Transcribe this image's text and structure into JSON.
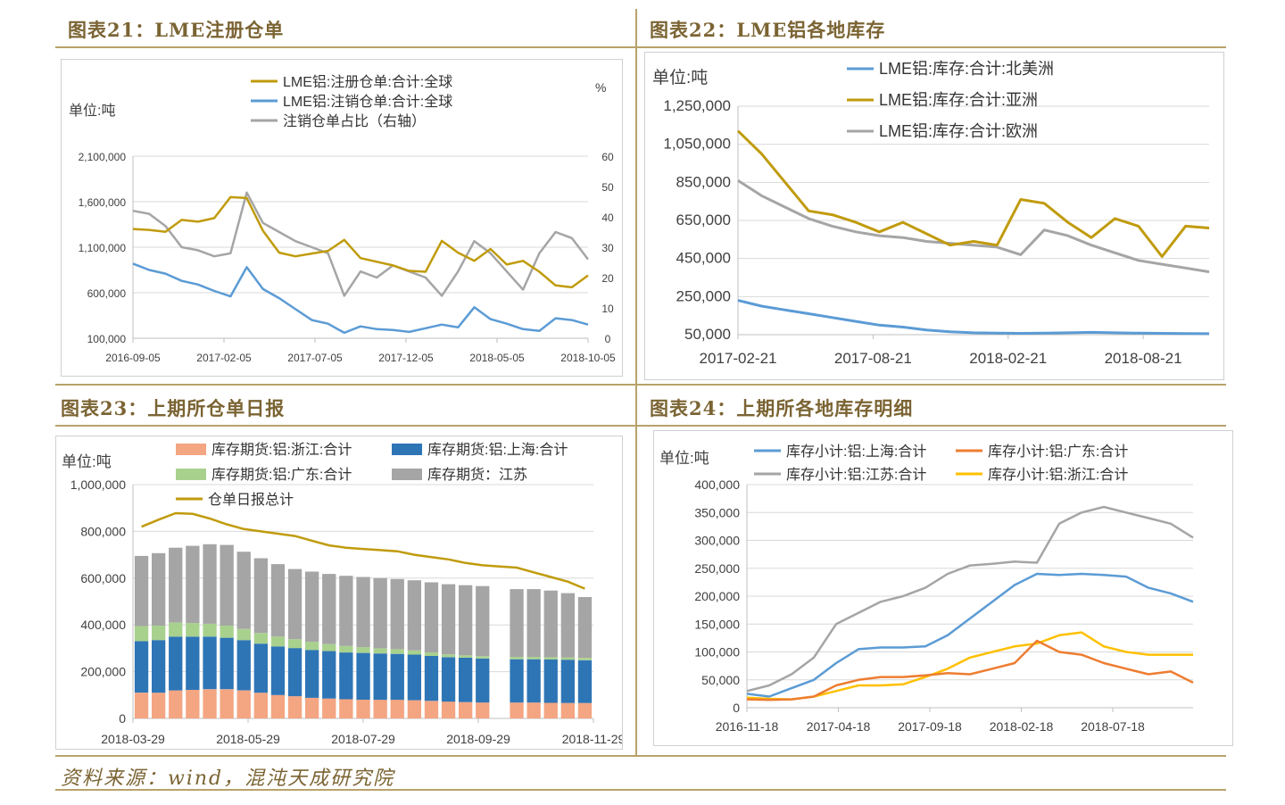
{
  "titles": {
    "p1": "图表21：LME注册仓单",
    "p2": "图表22：LME铝各地库存",
    "p3": "图表23：上期所仓单日报",
    "p4": "图表24：上期所各地库存明细"
  },
  "footer": "资料来源：wind，混沌天成研究院",
  "colors": {
    "gold": "#c09b0c",
    "blue": "#5b9bd5",
    "gray": "#a5a5a5",
    "orange": "#f4a582",
    "darkblue": "#2e75b6",
    "green": "#a9d18e",
    "redorange": "#ed7d31",
    "yellow": "#ffc000"
  },
  "chart_data": [
    {
      "id": "p1",
      "type": "line",
      "ylabel": "单位:吨",
      "y2label": "%",
      "ylim": [
        100000,
        2100000
      ],
      "yticks": [
        "100,000",
        "600,000",
        "1,100,000",
        "1,600,000",
        "2,100,000"
      ],
      "y2lim": [
        0,
        60
      ],
      "y2ticks": [
        "0",
        "10",
        "20",
        "30",
        "40",
        "50",
        "60"
      ],
      "xticks": [
        "2016-09-05",
        "2017-02-05",
        "2017-07-05",
        "2017-12-05",
        "2018-05-05",
        "2018-10-05"
      ],
      "legend": [
        "LME铝:注册仓单:合计:全球",
        "LME铝:注销仓单:合计:全球",
        "注销仓单占比（右轴）"
      ],
      "series": [
        {
          "name": "LME铝:注册仓单:合计:全球",
          "axis": "left",
          "color": "#c09b0c",
          "values": [
            1300000,
            1290000,
            1270000,
            1400000,
            1380000,
            1420000,
            1650000,
            1640000,
            1280000,
            1040000,
            1000000,
            1030000,
            1060000,
            1180000,
            980000,
            940000,
            900000,
            840000,
            830000,
            1170000,
            1040000,
            950000,
            1080000,
            910000,
            950000,
            830000,
            680000,
            660000,
            790000
          ]
        },
        {
          "name": "LME铝:注销仓单:合计:全球",
          "axis": "left",
          "color": "#5b9bd5",
          "values": [
            920000,
            850000,
            810000,
            730000,
            690000,
            620000,
            560000,
            880000,
            640000,
            540000,
            420000,
            300000,
            260000,
            160000,
            230000,
            200000,
            190000,
            170000,
            210000,
            250000,
            220000,
            440000,
            310000,
            260000,
            200000,
            180000,
            320000,
            300000,
            250000
          ]
        },
        {
          "name": "注销仓单占比（右轴）",
          "axis": "right",
          "color": "#a5a5a5",
          "values": [
            42,
            41,
            37,
            30,
            29,
            27,
            28,
            48,
            38,
            35,
            32,
            30,
            28,
            14,
            22,
            20,
            24,
            22,
            20,
            14,
            22,
            32,
            28,
            22,
            16,
            28,
            35,
            33,
            26
          ]
        }
      ]
    },
    {
      "id": "p2",
      "type": "line",
      "ylabel": "单位:吨",
      "ylim": [
        50000,
        1250000
      ],
      "yticks": [
        "50,000",
        "250,000",
        "450,000",
        "650,000",
        "850,000",
        "1,050,000",
        "1,250,000"
      ],
      "xticks": [
        "2017-02-21",
        "2017-08-21",
        "2018-02-21",
        "2018-08-21"
      ],
      "legend": [
        "LME铝:库存:合计:北美洲",
        "LME铝:库存:合计:亚洲",
        "LME铝:库存:合计:欧洲"
      ],
      "series": [
        {
          "name": "LME铝:库存:合计:北美洲",
          "color": "#5b9bd5",
          "values": [
            230000,
            200000,
            180000,
            160000,
            140000,
            120000,
            100000,
            90000,
            75000,
            65000,
            60000,
            58000,
            57000,
            58000,
            60000,
            62000,
            60000,
            58000,
            57000,
            56000,
            55000
          ]
        },
        {
          "name": "LME铝:库存:合计:亚洲",
          "color": "#c09b0c",
          "values": [
            1120000,
            1000000,
            850000,
            700000,
            680000,
            640000,
            590000,
            640000,
            580000,
            520000,
            540000,
            520000,
            760000,
            740000,
            640000,
            560000,
            660000,
            620000,
            460000,
            620000,
            610000
          ]
        },
        {
          "name": "LME铝:库存:合计:欧洲",
          "color": "#a5a5a5",
          "values": [
            860000,
            780000,
            720000,
            660000,
            620000,
            590000,
            570000,
            560000,
            540000,
            530000,
            520000,
            510000,
            470000,
            600000,
            570000,
            520000,
            480000,
            440000,
            420000,
            400000,
            380000
          ]
        }
      ]
    },
    {
      "id": "p3",
      "type": "bar",
      "ylabel": "单位:吨",
      "ylim": [
        0,
        1000000
      ],
      "yticks": [
        "0",
        "200,000",
        "400,000",
        "600,000",
        "800,000",
        "1,000,000"
      ],
      "xticks": [
        "2018-03-29",
        "2018-05-29",
        "2018-07-29",
        "2018-09-29",
        "2018-11-29"
      ],
      "legend": [
        "库存期货:铝:浙江:合计",
        "库存期货:铝:上海:合计",
        "库存期货:铝:广东:合计",
        "库存期货：江苏",
        "仓单日报总计"
      ],
      "stack": {
        "zhejiang": [
          110000,
          110000,
          120000,
          122000,
          125000,
          125000,
          120000,
          110000,
          100000,
          95000,
          88000,
          85000,
          82000,
          80000,
          80000,
          80000,
          78000,
          75000,
          72000,
          70000,
          68000,
          0,
          68000,
          68000,
          67000,
          66000,
          66000
        ],
        "shanghai": [
          220000,
          225000,
          230000,
          228000,
          225000,
          220000,
          215000,
          210000,
          208000,
          206000,
          205000,
          203000,
          200000,
          200000,
          198000,
          196000,
          195000,
          192000,
          190000,
          190000,
          188000,
          0,
          185000,
          185000,
          185000,
          185000,
          183000
        ],
        "guangdong": [
          65000,
          62000,
          60000,
          58000,
          55000,
          52000,
          48000,
          45000,
          42000,
          38000,
          35000,
          30000,
          28000,
          25000,
          22000,
          20000,
          18000,
          15000,
          12000,
          10000,
          10000,
          0,
          10000,
          10000,
          10000,
          10000,
          10000
        ],
        "jiangsu": [
          300000,
          310000,
          320000,
          330000,
          340000,
          345000,
          330000,
          320000,
          310000,
          300000,
          300000,
          300000,
          300000,
          300000,
          300000,
          300000,
          300000,
          300000,
          300000,
          300000,
          300000,
          0,
          290000,
          290000,
          285000,
          275000,
          260000
        ]
      },
      "line": {
        "name": "仓单日报总计",
        "values": [
          820000,
          850000,
          878000,
          875000,
          855000,
          830000,
          810000,
          800000,
          790000,
          780000,
          760000,
          740000,
          730000,
          725000,
          720000,
          715000,
          700000,
          690000,
          680000,
          665000,
          655000,
          650000,
          645000,
          625000,
          605000,
          585000,
          555000
        ]
      }
    },
    {
      "id": "p4",
      "type": "line",
      "ylabel": "单位:吨",
      "ylim": [
        0,
        400000
      ],
      "yticks": [
        "0",
        "50,000",
        "100,000",
        "150,000",
        "200,000",
        "250,000",
        "300,000",
        "350,000",
        "400,000"
      ],
      "xticks": [
        "2016-11-18",
        "2017-04-18",
        "2017-09-18",
        "2018-02-18",
        "2018-07-18"
      ],
      "legend": [
        "库存小计:铝:上海:合计",
        "库存小计:铝:广东:合计",
        "库存小计:铝:江苏:合计",
        "库存小计:铝:浙江:合计"
      ],
      "series": [
        {
          "name": "库存小计:铝:上海:合计",
          "color": "#5b9bd5",
          "values": [
            25000,
            20000,
            35000,
            50000,
            80000,
            105000,
            108000,
            108000,
            110000,
            130000,
            160000,
            190000,
            220000,
            240000,
            238000,
            240000,
            238000,
            235000,
            215000,
            205000,
            190000
          ]
        },
        {
          "name": "库存小计:铝:广东:合计",
          "color": "#ed7d31",
          "values": [
            15000,
            14000,
            15000,
            20000,
            40000,
            50000,
            55000,
            55000,
            58000,
            62000,
            60000,
            70000,
            80000,
            120000,
            100000,
            95000,
            80000,
            70000,
            60000,
            65000,
            45000
          ]
        },
        {
          "name": "库存小计:铝:江苏:合计",
          "color": "#a5a5a5",
          "values": [
            30000,
            40000,
            60000,
            90000,
            150000,
            170000,
            190000,
            200000,
            215000,
            240000,
            255000,
            258000,
            262000,
            260000,
            330000,
            350000,
            360000,
            350000,
            340000,
            330000,
            305000
          ]
        },
        {
          "name": "库存小计:铝:浙江:合计",
          "color": "#ffc000",
          "values": [
            18000,
            16000,
            15000,
            20000,
            30000,
            40000,
            40000,
            42000,
            55000,
            70000,
            90000,
            100000,
            110000,
            115000,
            130000,
            135000,
            110000,
            100000,
            95000,
            95000,
            95000
          ]
        }
      ]
    }
  ]
}
